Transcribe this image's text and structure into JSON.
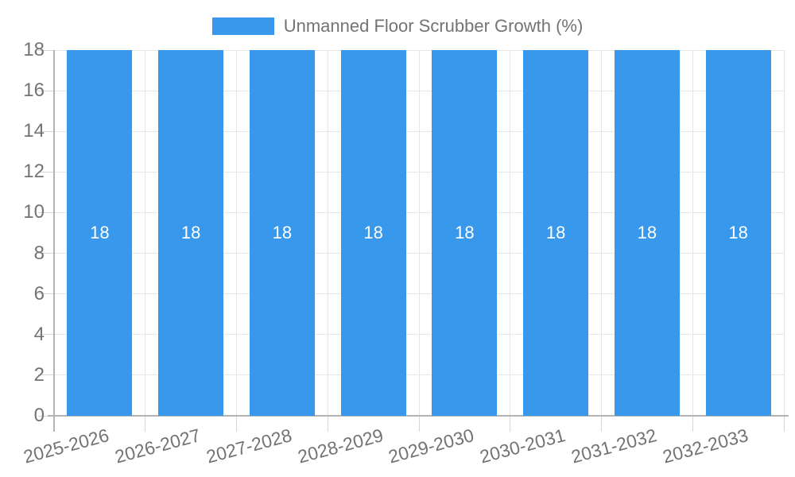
{
  "legend": {
    "label": "Unmanned Floor Scrubber Growth (%)"
  },
  "chart_data": {
    "type": "bar",
    "title": "Unmanned Floor Scrubber Growth (%)",
    "categories": [
      "2025-2026",
      "2026-2027",
      "2027-2028",
      "2028-2029",
      "2029-2030",
      "2030-2031",
      "2031-2032",
      "2032-2033"
    ],
    "series": [
      {
        "name": "Unmanned Floor Scrubber Growth (%)",
        "values": [
          18,
          18,
          18,
          18,
          18,
          18,
          18,
          18
        ]
      }
    ],
    "value_labels": [
      "18",
      "18",
      "18",
      "18",
      "18",
      "18",
      "18",
      "18"
    ],
    "xlabel": "",
    "ylabel": "",
    "ylim": [
      0,
      18
    ],
    "yticks": [
      0,
      2,
      4,
      6,
      8,
      10,
      12,
      14,
      16,
      18
    ],
    "grid": true,
    "legend_position": "top",
    "colors": {
      "bar": "#3898ec",
      "axis_line": "#b3b3b3",
      "grid_line": "#e6e6e6",
      "tick_text": "#737373",
      "value_label": "#ffffff",
      "background": "#ffffff"
    }
  }
}
